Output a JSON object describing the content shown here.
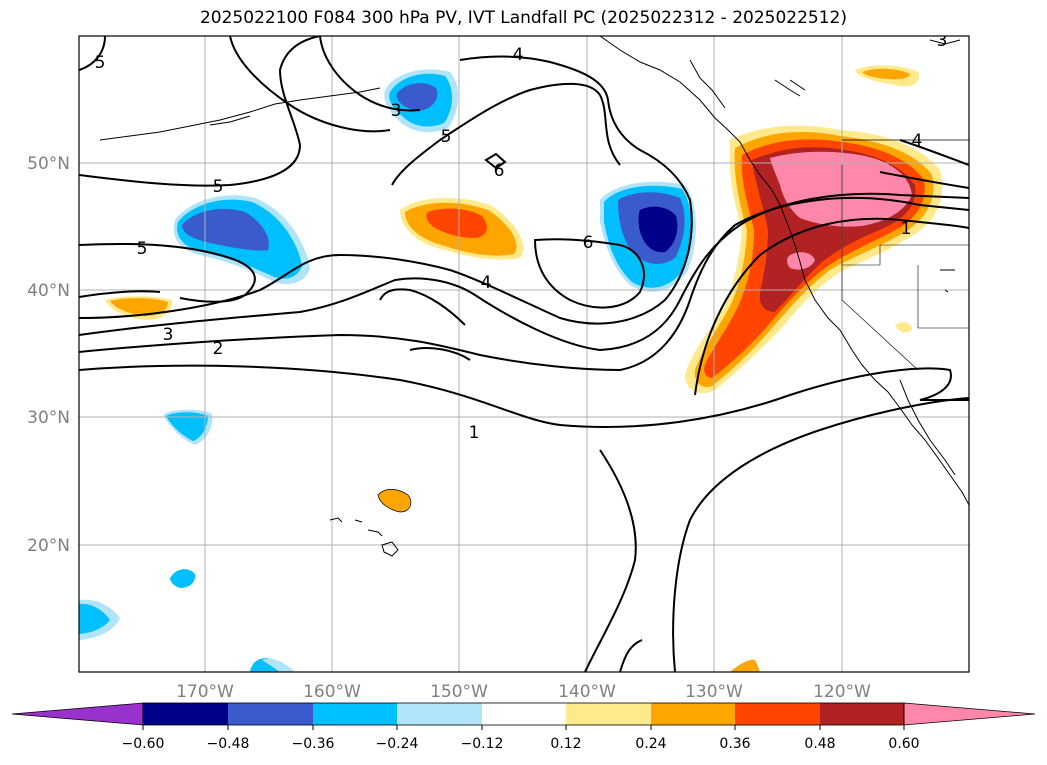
{
  "title": "2025022100 F084 300 hPa PV, IVT Landfall PC (2025022312 - 2025022512)",
  "lon_labels": [
    "170°W",
    "160°W",
    "150°W",
    "140°W",
    "130°W",
    "120°W"
  ],
  "lat_labels": [
    "50°N",
    "40°N",
    "30°N",
    "20°N"
  ],
  "colorbar": {
    "ticks": [
      "−0.60",
      "−0.48",
      "−0.36",
      "−0.24",
      "−0.12",
      "0.12",
      "0.24",
      "0.36",
      "0.48",
      "0.60"
    ],
    "colors": [
      "#9932cc",
      "#00008b",
      "#3a5bcc",
      "#00bfff",
      "#afe4fa",
      "#ffffff",
      "#ffe98a",
      "#ffa500",
      "#ff4500",
      "#b22222",
      "#ff88aa"
    ]
  },
  "pv_contour_labels": [
    "4",
    "5",
    "3",
    "5",
    "6",
    "5",
    "5",
    "6",
    "4",
    "3",
    "2",
    "1",
    "4",
    "1",
    "3"
  ]
}
